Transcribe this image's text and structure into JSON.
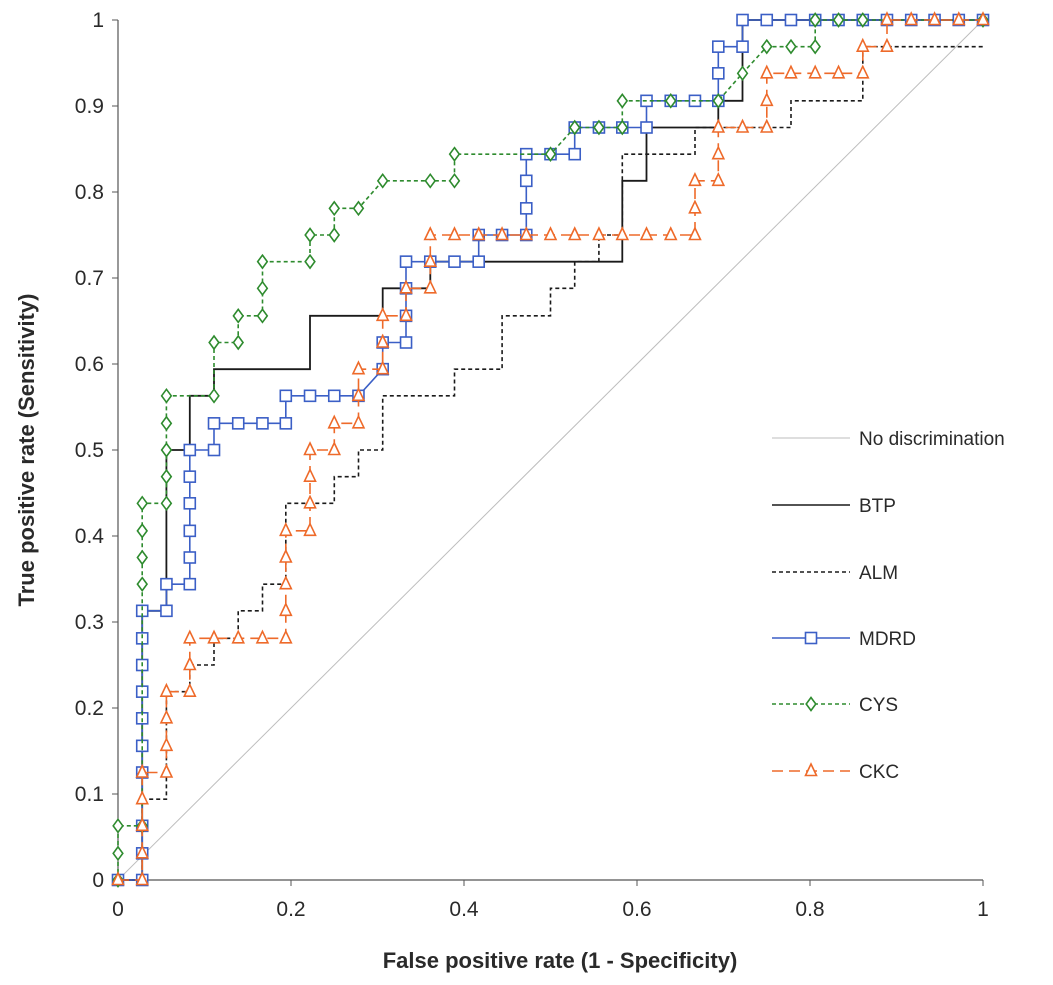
{
  "chart_data": {
    "type": "line",
    "title": "",
    "xlabel": "False positive rate (1 - Specificity)",
    "ylabel": "True positive rate (Sensitivity)",
    "xlim": [
      0,
      1
    ],
    "ylim": [
      0,
      1
    ],
    "x_ticks": [
      "0",
      "0.2",
      "0.4",
      "0.6",
      "0.8",
      "1"
    ],
    "y_ticks": [
      "0",
      "0.1",
      "0.2",
      "0.3",
      "0.4",
      "0.5",
      "0.6",
      "0.7",
      "0.8",
      "0.9",
      "1"
    ],
    "grid": false,
    "legend_position": "right",
    "series": [
      {
        "name": "No discrimination",
        "color": "#bdbdbd",
        "line_style": "solid",
        "marker": "none",
        "points": [
          [
            0,
            0
          ],
          [
            1,
            1
          ]
        ]
      },
      {
        "name": "BTP",
        "color": "#1a1a1a",
        "line_style": "solid",
        "marker": "none",
        "points": [
          [
            0,
            0
          ],
          [
            0.028,
            0
          ],
          [
            0.028,
            0.313
          ],
          [
            0.056,
            0.313
          ],
          [
            0.056,
            0.5
          ],
          [
            0.083,
            0.5
          ],
          [
            0.083,
            0.563
          ],
          [
            0.111,
            0.563
          ],
          [
            0.111,
            0.594
          ],
          [
            0.222,
            0.594
          ],
          [
            0.222,
            0.656
          ],
          [
            0.306,
            0.656
          ],
          [
            0.306,
            0.688
          ],
          [
            0.361,
            0.688
          ],
          [
            0.361,
            0.719
          ],
          [
            0.583,
            0.719
          ],
          [
            0.583,
            0.813
          ],
          [
            0.611,
            0.813
          ],
          [
            0.611,
            0.875
          ],
          [
            0.694,
            0.875
          ],
          [
            0.694,
            0.906
          ],
          [
            0.722,
            0.906
          ],
          [
            0.722,
            1
          ],
          [
            1,
            1
          ]
        ]
      },
      {
        "name": "ALM",
        "color": "#1a1a1a",
        "line_style": "dashed",
        "marker": "none",
        "points": [
          [
            0,
            0
          ],
          [
            0.028,
            0
          ],
          [
            0.028,
            0.094
          ],
          [
            0.056,
            0.094
          ],
          [
            0.056,
            0.219
          ],
          [
            0.083,
            0.219
          ],
          [
            0.083,
            0.25
          ],
          [
            0.111,
            0.25
          ],
          [
            0.111,
            0.281
          ],
          [
            0.139,
            0.281
          ],
          [
            0.139,
            0.313
          ],
          [
            0.167,
            0.313
          ],
          [
            0.167,
            0.344
          ],
          [
            0.194,
            0.344
          ],
          [
            0.194,
            0.438
          ],
          [
            0.25,
            0.438
          ],
          [
            0.25,
            0.469
          ],
          [
            0.278,
            0.469
          ],
          [
            0.278,
            0.5
          ],
          [
            0.306,
            0.5
          ],
          [
            0.306,
            0.563
          ],
          [
            0.389,
            0.563
          ],
          [
            0.389,
            0.594
          ],
          [
            0.444,
            0.594
          ],
          [
            0.444,
            0.656
          ],
          [
            0.5,
            0.656
          ],
          [
            0.5,
            0.688
          ],
          [
            0.528,
            0.688
          ],
          [
            0.528,
            0.719
          ],
          [
            0.556,
            0.719
          ],
          [
            0.556,
            0.75
          ],
          [
            0.583,
            0.75
          ],
          [
            0.583,
            0.844
          ],
          [
            0.667,
            0.844
          ],
          [
            0.667,
            0.875
          ],
          [
            0.778,
            0.875
          ],
          [
            0.778,
            0.906
          ],
          [
            0.861,
            0.906
          ],
          [
            0.861,
            0.969
          ],
          [
            1,
            0.969
          ]
        ]
      },
      {
        "name": "MDRD",
        "color": "#3b5fc6",
        "line_style": "solid",
        "marker": "square",
        "points": [
          [
            0,
            0
          ],
          [
            0.028,
            0
          ],
          [
            0.028,
            0.031
          ],
          [
            0.028,
            0.063
          ],
          [
            0.028,
            0.125
          ],
          [
            0.028,
            0.156
          ],
          [
            0.028,
            0.188
          ],
          [
            0.028,
            0.219
          ],
          [
            0.028,
            0.25
          ],
          [
            0.028,
            0.281
          ],
          [
            0.028,
            0.313
          ],
          [
            0.056,
            0.313
          ],
          [
            0.056,
            0.344
          ],
          [
            0.083,
            0.344
          ],
          [
            0.083,
            0.375
          ],
          [
            0.083,
            0.406
          ],
          [
            0.083,
            0.438
          ],
          [
            0.083,
            0.469
          ],
          [
            0.083,
            0.5
          ],
          [
            0.111,
            0.5
          ],
          [
            0.111,
            0.531
          ],
          [
            0.139,
            0.531
          ],
          [
            0.167,
            0.531
          ],
          [
            0.194,
            0.531
          ],
          [
            0.194,
            0.563
          ],
          [
            0.222,
            0.563
          ],
          [
            0.25,
            0.563
          ],
          [
            0.278,
            0.563
          ],
          [
            0.306,
            0.594
          ],
          [
            0.306,
            0.625
          ],
          [
            0.333,
            0.625
          ],
          [
            0.333,
            0.656
          ],
          [
            0.333,
            0.688
          ],
          [
            0.333,
            0.719
          ],
          [
            0.361,
            0.719
          ],
          [
            0.389,
            0.719
          ],
          [
            0.417,
            0.719
          ],
          [
            0.417,
            0.75
          ],
          [
            0.444,
            0.75
          ],
          [
            0.472,
            0.75
          ],
          [
            0.472,
            0.781
          ],
          [
            0.472,
            0.813
          ],
          [
            0.472,
            0.844
          ],
          [
            0.5,
            0.844
          ],
          [
            0.528,
            0.844
          ],
          [
            0.528,
            0.875
          ],
          [
            0.556,
            0.875
          ],
          [
            0.583,
            0.875
          ],
          [
            0.611,
            0.875
          ],
          [
            0.611,
            0.906
          ],
          [
            0.639,
            0.906
          ],
          [
            0.667,
            0.906
          ],
          [
            0.694,
            0.906
          ],
          [
            0.694,
            0.938
          ],
          [
            0.694,
            0.969
          ],
          [
            0.722,
            0.969
          ],
          [
            0.722,
            1
          ],
          [
            0.75,
            1
          ],
          [
            0.778,
            1
          ],
          [
            0.806,
            1
          ],
          [
            0.833,
            1
          ],
          [
            0.861,
            1
          ],
          [
            0.889,
            1
          ],
          [
            0.917,
            1
          ],
          [
            0.944,
            1
          ],
          [
            0.972,
            1
          ],
          [
            1,
            1
          ]
        ]
      },
      {
        "name": "CYS",
        "color": "#2e8b2e",
        "line_style": "dashed",
        "marker": "diamond",
        "points": [
          [
            0,
            0
          ],
          [
            0,
            0.031
          ],
          [
            0,
            0.063
          ],
          [
            0.028,
            0.063
          ],
          [
            0.028,
            0.344
          ],
          [
            0.028,
            0.375
          ],
          [
            0.028,
            0.406
          ],
          [
            0.028,
            0.438
          ],
          [
            0.056,
            0.438
          ],
          [
            0.056,
            0.469
          ],
          [
            0.056,
            0.5
          ],
          [
            0.056,
            0.531
          ],
          [
            0.056,
            0.563
          ],
          [
            0.111,
            0.563
          ],
          [
            0.111,
            0.625
          ],
          [
            0.139,
            0.625
          ],
          [
            0.139,
            0.656
          ],
          [
            0.167,
            0.656
          ],
          [
            0.167,
            0.688
          ],
          [
            0.167,
            0.719
          ],
          [
            0.222,
            0.719
          ],
          [
            0.222,
            0.75
          ],
          [
            0.25,
            0.75
          ],
          [
            0.25,
            0.781
          ],
          [
            0.278,
            0.781
          ],
          [
            0.306,
            0.813
          ],
          [
            0.361,
            0.813
          ],
          [
            0.389,
            0.813
          ],
          [
            0.389,
            0.844
          ],
          [
            0.5,
            0.844
          ],
          [
            0.528,
            0.875
          ],
          [
            0.556,
            0.875
          ],
          [
            0.583,
            0.875
          ],
          [
            0.583,
            0.906
          ],
          [
            0.639,
            0.906
          ],
          [
            0.694,
            0.906
          ],
          [
            0.722,
            0.938
          ],
          [
            0.75,
            0.969
          ],
          [
            0.778,
            0.969
          ],
          [
            0.806,
            0.969
          ],
          [
            0.806,
            1
          ],
          [
            0.833,
            1
          ],
          [
            0.861,
            1
          ],
          [
            1,
            1
          ]
        ]
      },
      {
        "name": "CKC",
        "color": "#ee6a2a",
        "line_style": "long-dash",
        "marker": "triangle",
        "points": [
          [
            0,
            0
          ],
          [
            0.028,
            0
          ],
          [
            0.028,
            0.031
          ],
          [
            0.028,
            0.063
          ],
          [
            0.028,
            0.094
          ],
          [
            0.028,
            0.125
          ],
          [
            0.056,
            0.125
          ],
          [
            0.056,
            0.156
          ],
          [
            0.056,
            0.188
          ],
          [
            0.056,
            0.219
          ],
          [
            0.083,
            0.219
          ],
          [
            0.083,
            0.25
          ],
          [
            0.083,
            0.281
          ],
          [
            0.111,
            0.281
          ],
          [
            0.139,
            0.281
          ],
          [
            0.167,
            0.281
          ],
          [
            0.194,
            0.281
          ],
          [
            0.194,
            0.313
          ],
          [
            0.194,
            0.344
          ],
          [
            0.194,
            0.375
          ],
          [
            0.194,
            0.406
          ],
          [
            0.222,
            0.406
          ],
          [
            0.222,
            0.438
          ],
          [
            0.222,
            0.469
          ],
          [
            0.222,
            0.5
          ],
          [
            0.25,
            0.5
          ],
          [
            0.25,
            0.531
          ],
          [
            0.278,
            0.531
          ],
          [
            0.278,
            0.563
          ],
          [
            0.278,
            0.594
          ],
          [
            0.306,
            0.594
          ],
          [
            0.306,
            0.625
          ],
          [
            0.306,
            0.656
          ],
          [
            0.333,
            0.656
          ],
          [
            0.333,
            0.688
          ],
          [
            0.361,
            0.688
          ],
          [
            0.361,
            0.719
          ],
          [
            0.361,
            0.75
          ],
          [
            0.389,
            0.75
          ],
          [
            0.417,
            0.75
          ],
          [
            0.444,
            0.75
          ],
          [
            0.472,
            0.75
          ],
          [
            0.5,
            0.75
          ],
          [
            0.528,
            0.75
          ],
          [
            0.556,
            0.75
          ],
          [
            0.583,
            0.75
          ],
          [
            0.611,
            0.75
          ],
          [
            0.639,
            0.75
          ],
          [
            0.667,
            0.75
          ],
          [
            0.667,
            0.781
          ],
          [
            0.667,
            0.813
          ],
          [
            0.694,
            0.813
          ],
          [
            0.694,
            0.844
          ],
          [
            0.694,
            0.875
          ],
          [
            0.722,
            0.875
          ],
          [
            0.75,
            0.875
          ],
          [
            0.75,
            0.906
          ],
          [
            0.75,
            0.938
          ],
          [
            0.778,
            0.938
          ],
          [
            0.806,
            0.938
          ],
          [
            0.833,
            0.938
          ],
          [
            0.861,
            0.938
          ],
          [
            0.861,
            0.969
          ],
          [
            0.889,
            0.969
          ],
          [
            0.889,
            1
          ],
          [
            0.917,
            1
          ],
          [
            0.944,
            1
          ],
          [
            0.972,
            1
          ],
          [
            1,
            1
          ]
        ]
      }
    ]
  }
}
